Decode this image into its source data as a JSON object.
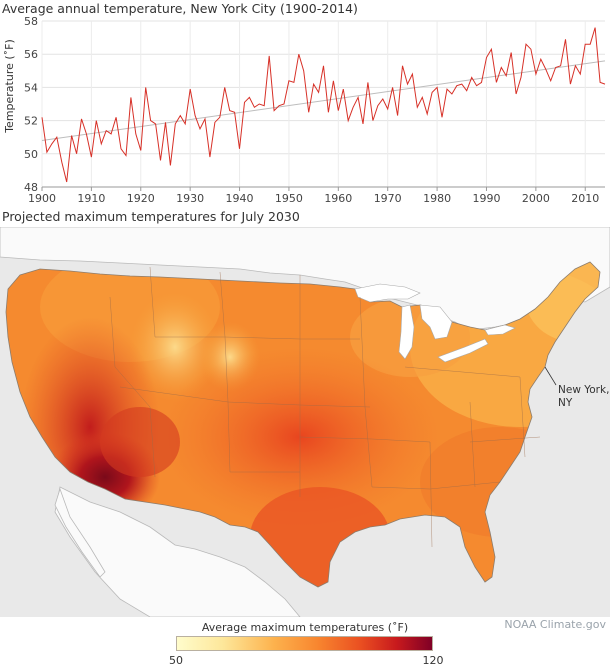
{
  "chart_data": {
    "type": "line",
    "title": "Average annual temperature, New York City (1900-2014)",
    "ylabel": "Temperature (˚F)",
    "xlabel": "",
    "xlim": [
      1900,
      2014
    ],
    "ylim": [
      48,
      58
    ],
    "xticks": [
      1900,
      1910,
      1920,
      1930,
      1940,
      1950,
      1960,
      1970,
      1980,
      1990,
      2000,
      2010
    ],
    "yticks": [
      48,
      50,
      52,
      54,
      56,
      58
    ],
    "grid": true,
    "series_color": "#d73027",
    "trend_color": "#bdbdbd",
    "trend": {
      "x": [
        1900,
        2014
      ],
      "y": [
        50.8,
        55.6
      ]
    },
    "x": [
      1900,
      1901,
      1902,
      1903,
      1904,
      1905,
      1906,
      1907,
      1908,
      1909,
      1910,
      1911,
      1912,
      1913,
      1914,
      1915,
      1916,
      1917,
      1918,
      1919,
      1920,
      1921,
      1922,
      1923,
      1924,
      1925,
      1926,
      1927,
      1928,
      1929,
      1930,
      1931,
      1932,
      1933,
      1934,
      1935,
      1936,
      1937,
      1938,
      1939,
      1940,
      1941,
      1942,
      1943,
      1944,
      1945,
      1946,
      1947,
      1948,
      1949,
      1950,
      1951,
      1952,
      1953,
      1954,
      1955,
      1956,
      1957,
      1958,
      1959,
      1960,
      1961,
      1962,
      1963,
      1964,
      1965,
      1966,
      1967,
      1968,
      1969,
      1970,
      1971,
      1972,
      1973,
      1974,
      1975,
      1976,
      1977,
      1978,
      1979,
      1980,
      1981,
      1982,
      1983,
      1984,
      1985,
      1986,
      1987,
      1988,
      1989,
      1990,
      1991,
      1992,
      1993,
      1994,
      1995,
      1996,
      1997,
      1998,
      1999,
      2000,
      2001,
      2002,
      2003,
      2004,
      2005,
      2006,
      2007,
      2008,
      2009,
      2010,
      2011,
      2012,
      2013,
      2014
    ],
    "values": [
      52.2,
      50.1,
      50.6,
      51.0,
      49.5,
      48.3,
      51.1,
      50.0,
      52.1,
      51.2,
      49.8,
      52.0,
      50.6,
      51.4,
      51.2,
      52.2,
      50.3,
      49.9,
      53.4,
      51.2,
      50.2,
      54.0,
      52.0,
      51.8,
      49.6,
      51.9,
      49.3,
      51.8,
      52.3,
      51.8,
      53.9,
      52.3,
      51.5,
      52.1,
      49.8,
      51.9,
      52.2,
      54.0,
      52.6,
      52.5,
      50.3,
      53.1,
      53.4,
      52.8,
      53.0,
      52.9,
      55.9,
      52.6,
      52.9,
      53.0,
      54.4,
      54.3,
      56.0,
      55.0,
      52.5,
      54.2,
      53.7,
      55.3,
      52.5,
      54.4,
      52.6,
      53.9,
      52.0,
      52.8,
      53.4,
      51.8,
      54.3,
      52.0,
      52.9,
      53.3,
      52.7,
      54.0,
      52.3,
      55.3,
      54.2,
      54.8,
      52.8,
      53.4,
      52.4,
      53.7,
      54.0,
      52.2,
      53.9,
      53.6,
      54.1,
      54.2,
      53.8,
      54.6,
      54.1,
      54.3,
      55.8,
      56.3,
      54.3,
      55.2,
      54.7,
      56.1,
      53.6,
      54.6,
      56.6,
      56.3,
      54.8,
      55.7,
      55.1,
      54.4,
      55.2,
      55.3,
      56.9,
      54.2,
      55.3,
      54.8,
      56.6,
      56.6,
      57.6,
      54.3,
      54.2
    ]
  },
  "map": {
    "title": "Projected maximum temperatures for July 2030",
    "city_label_line1": "New York,",
    "city_label_line2": "NY",
    "water_color": "#e9e9e9",
    "land_color": "#fafafa"
  },
  "legend": {
    "title": "Average maximum temperatures (˚F)",
    "min": "50",
    "max": "120"
  },
  "credit": "NOAA Climate.gov"
}
